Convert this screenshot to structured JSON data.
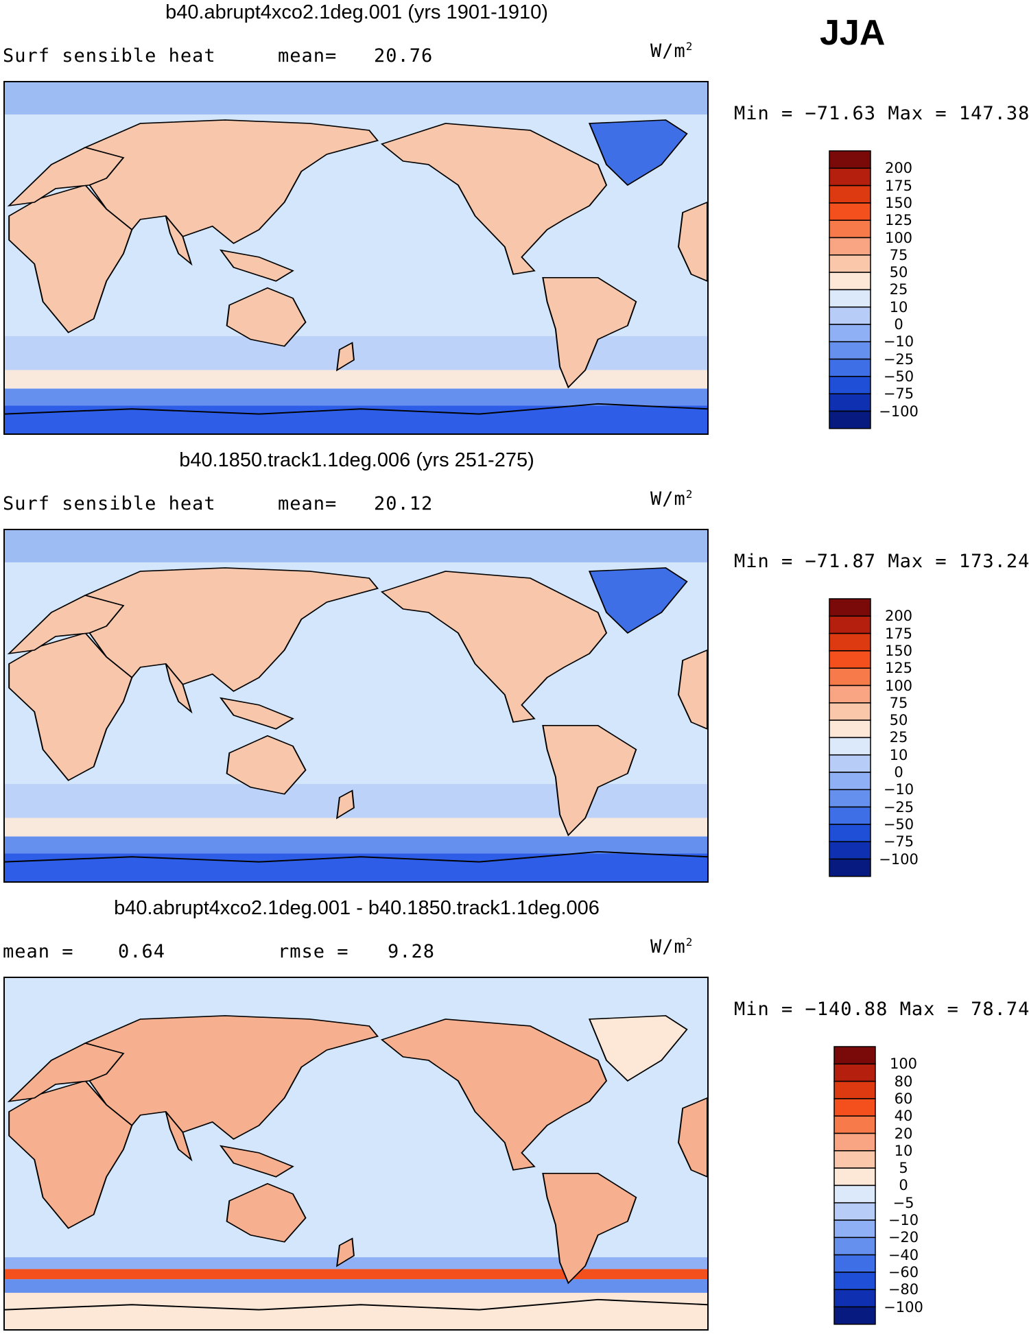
{
  "season": "JJA",
  "panels": [
    {
      "id": "panel1",
      "title": "b40.abrupt4xco2.1deg.001 (yrs 1901-1910)",
      "left_label": "Surf sensible heat",
      "mid_label": "mean=",
      "mid_value": "20.76",
      "units": "W/m",
      "units_exp": "2",
      "minmax": "Min = −71.63 Max = 147.38",
      "colorbar": {
        "labels": [
          "200",
          "175",
          "150",
          "125",
          "100",
          "75",
          "50",
          "25",
          "10",
          "0",
          "−10",
          "−25",
          "−50",
          "−75",
          "−100"
        ],
        "colors": [
          "#7a0a0a",
          "#b51f0d",
          "#dd3a12",
          "#f4501d",
          "#f77a4a",
          "#f9a584",
          "#fbc7aa",
          "#fde8d8",
          "#dbe9fb",
          "#b7cdf8",
          "#8fb0f4",
          "#6690ee",
          "#3f6fe6",
          "#1f4fd6",
          "#0f30b0",
          "#061a7f"
        ]
      },
      "map": {
        "ocean": "#d4e6fb",
        "land": "#f7c6ab",
        "south": "#2e5ee8",
        "tone": "abs"
      }
    },
    {
      "id": "panel2",
      "title": "b40.1850.track1.1deg.006 (yrs 251-275)",
      "left_label": "Surf sensible heat",
      "mid_label": "mean=",
      "mid_value": "20.12",
      "units": "W/m",
      "units_exp": "2",
      "minmax": "Min = −71.87 Max = 173.24",
      "colorbar": {
        "labels": [
          "200",
          "175",
          "150",
          "125",
          "100",
          "75",
          "50",
          "25",
          "10",
          "0",
          "−10",
          "−25",
          "−50",
          "−75",
          "−100"
        ],
        "colors": [
          "#7a0a0a",
          "#b51f0d",
          "#dd3a12",
          "#f4501d",
          "#f77a4a",
          "#f9a584",
          "#fbc7aa",
          "#fde8d8",
          "#dbe9fb",
          "#b7cdf8",
          "#8fb0f4",
          "#6690ee",
          "#3f6fe6",
          "#1f4fd6",
          "#0f30b0",
          "#061a7f"
        ]
      },
      "map": {
        "ocean": "#d4e6fb",
        "land": "#f7c6ab",
        "south": "#2e5ee8",
        "tone": "abs"
      }
    },
    {
      "id": "panel3",
      "title": "b40.abrupt4xco2.1deg.001 - b40.1850.track1.1deg.006",
      "left_label": "mean =",
      "left_value": "0.64",
      "mid_label": "rmse =",
      "mid_value": "9.28",
      "units": "W/m",
      "units_exp": "2",
      "minmax": "Min = −140.88 Max =  78.74",
      "colorbar": {
        "labels": [
          "100",
          "80",
          "60",
          "40",
          "20",
          "10",
          "5",
          "0",
          "−5",
          "−10",
          "−20",
          "−40",
          "−60",
          "−80",
          "−100"
        ],
        "colors": [
          "#7a0a0a",
          "#b51f0d",
          "#dd3a12",
          "#f4501d",
          "#f77a4a",
          "#f9a584",
          "#fbc7aa",
          "#fde8d8",
          "#dbe9fb",
          "#b7cdf8",
          "#8fb0f4",
          "#6690ee",
          "#3f6fe6",
          "#1f4fd6",
          "#0f30b0",
          "#061a7f"
        ]
      },
      "map": {
        "ocean": "#d4e6fb",
        "land": "#f7b08f",
        "south": "#fde8d8",
        "tone": "diff"
      }
    }
  ]
}
